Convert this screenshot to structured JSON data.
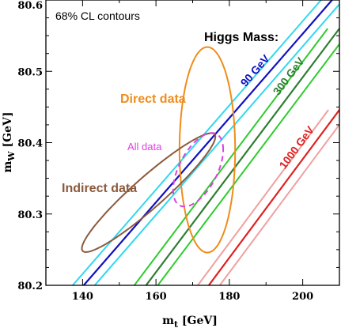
{
  "chart_data": {
    "type": "contour",
    "subtitle": "68% CL contours",
    "xlabel_main": "m",
    "xlabel_sub": "t",
    "xlabel_unit": " [GeV]",
    "ylabel_main": "m",
    "ylabel_sub": "W",
    "ylabel_unit": " [GeV]",
    "xlim": [
      130,
      210
    ],
    "ylim": [
      80.2,
      80.6
    ],
    "xticks": [
      140,
      160,
      180,
      200
    ],
    "yticks": [
      80.2,
      80.3,
      80.4,
      80.5,
      80.6
    ],
    "grid": false,
    "higgs_band_title": "Higgs Mass:",
    "higgs_bands": [
      {
        "label": "90 GeV",
        "color": "#1010c0",
        "edge_color": "#30d8f0",
        "center": [
          [
            140.3,
            80.2
          ],
          [
            208.0,
            80.6
          ]
        ],
        "half_width_mt": 3.0
      },
      {
        "label": "300 GeV",
        "color": "#2e7d32",
        "edge_color": "#2ecc2e",
        "center": [
          [
            157.3,
            80.2
          ],
          [
            210.0,
            80.56
          ]
        ],
        "half_width_mt": 3.2
      },
      {
        "label": "1000 GeV",
        "color": "#e02020",
        "edge_color": "#f0a0a0",
        "center": [
          [
            174.4,
            80.2
          ],
          [
            210.0,
            80.446
          ]
        ],
        "half_width_mt": 3.0
      }
    ],
    "contours": [
      {
        "name": "Direct data",
        "style": "solid",
        "color": "#f08c1a",
        "center": [
          174.0,
          80.39
        ],
        "sigma_mt": 5.0,
        "sigma_mw": 0.095,
        "rho": 0.0
      },
      {
        "name": "Indirect data",
        "style": "solid",
        "color": "#8b5a3c",
        "center": [
          158.0,
          80.33
        ],
        "sigma_mt": 12.0,
        "sigma_mw": 0.055,
        "rho": 0.94
      },
      {
        "name": "All data",
        "style": "dashed",
        "color": "#e040e0",
        "center": [
          171.5,
          80.362
        ],
        "sigma_mt": 4.5,
        "sigma_mw": 0.034,
        "rho": 0.55
      }
    ]
  }
}
